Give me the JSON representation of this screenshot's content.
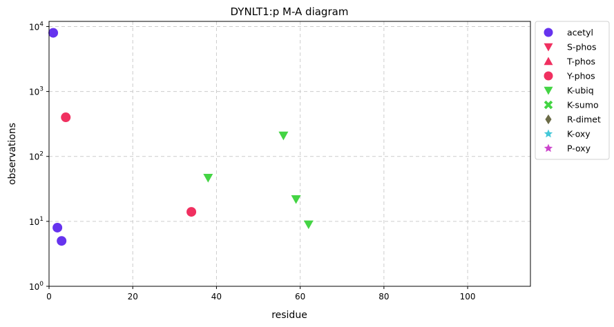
{
  "chart_data": {
    "type": "scatter",
    "title": "DYNLT1:p M-A diagram",
    "xlabel": "residue",
    "ylabel": "observations",
    "xlim": [
      0,
      115
    ],
    "ylim": [
      1,
      12000
    ],
    "yscale": "log",
    "grid": true,
    "legend_position": "outside-right",
    "x_ticks": [
      0,
      20,
      40,
      60,
      80,
      100
    ],
    "y_ticks": [
      {
        "value": 1,
        "base": "10",
        "exp": "0"
      },
      {
        "value": 10,
        "base": "10",
        "exp": "1"
      },
      {
        "value": 100,
        "base": "10",
        "exp": "2"
      },
      {
        "value": 1000,
        "base": "10",
        "exp": "3"
      },
      {
        "value": 10000,
        "base": "10",
        "exp": "4"
      }
    ],
    "series": [
      {
        "name": "acetyl",
        "marker": "circle",
        "color": "#6633ee",
        "points": [
          {
            "x": 1,
            "y": 8000
          },
          {
            "x": 2,
            "y": 8
          },
          {
            "x": 3,
            "y": 5
          }
        ]
      },
      {
        "name": "S-phos",
        "marker": "triangle-down",
        "color": "#f03060",
        "points": []
      },
      {
        "name": "T-phos",
        "marker": "triangle-up",
        "color": "#f03060",
        "points": []
      },
      {
        "name": "Y-phos",
        "marker": "circle",
        "color": "#f03060",
        "points": [
          {
            "x": 4,
            "y": 400
          },
          {
            "x": 34,
            "y": 14
          }
        ]
      },
      {
        "name": "K-ubiq",
        "marker": "triangle-down",
        "color": "#44d444",
        "points": [
          {
            "x": 38,
            "y": 47
          },
          {
            "x": 56,
            "y": 210
          },
          {
            "x": 59,
            "y": 22
          },
          {
            "x": 62,
            "y": 9
          }
        ]
      },
      {
        "name": "K-sumo",
        "marker": "x",
        "color": "#44d444",
        "points": []
      },
      {
        "name": "R-dimet",
        "marker": "diamond",
        "color": "#6b6b47",
        "points": []
      },
      {
        "name": "K-oxy",
        "marker": "star",
        "color": "#44c8d8",
        "points": []
      },
      {
        "name": "P-oxy",
        "marker": "star",
        "color": "#cc44cc",
        "points": []
      }
    ]
  }
}
